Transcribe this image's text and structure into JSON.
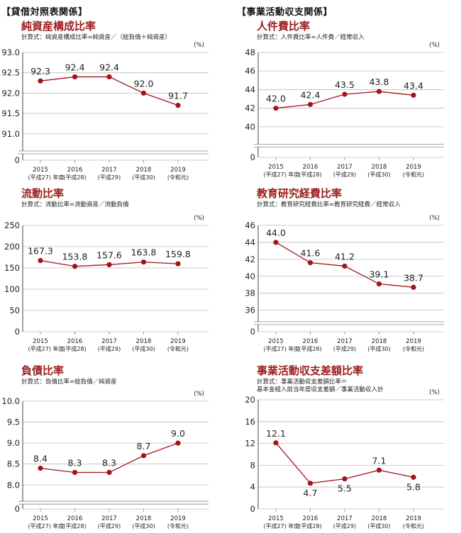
{
  "sections": {
    "left": "【貸借対照表関係】",
    "right": "【事業活動収支関係】"
  },
  "chart_data": [
    {
      "id": "c1",
      "type": "line",
      "title": "純資産構成比率",
      "formula": "計算式：純資産構成比率=純資産／（総負債＋純資産）",
      "unit": "(%)",
      "categories": [
        "2015",
        "2016",
        "2017",
        "2018",
        "2019"
      ],
      "sub_categories": [
        "(平成27) 年度",
        "(平成28)",
        "(平成29)",
        "(平成30)",
        "(令和元)"
      ],
      "values": [
        92.3,
        92.4,
        92.4,
        92.0,
        91.7
      ],
      "value_labels": [
        "92.3",
        "92.4",
        "92.4",
        "92.0",
        "91.7"
      ],
      "ylim": [
        90.7,
        93.0
      ],
      "yticks": [
        91.0,
        91.5,
        92.0,
        92.5,
        93.0
      ],
      "ytick_labels": [
        "91.0",
        "91.5",
        "92.0",
        "92.5",
        "93.0"
      ],
      "zero_label": "0",
      "axis_break": true,
      "color": "#a3131a"
    },
    {
      "id": "c2",
      "type": "line",
      "title": "人件費比率",
      "formula": "計算式：人件費比率=人件費／経常収入",
      "unit": "(%)",
      "categories": [
        "2015",
        "2016",
        "2017",
        "2018",
        "2019"
      ],
      "sub_categories": [
        "(平成27) 年度",
        "(平成28)",
        "(平成29)",
        "(平成30)",
        "(令和元)"
      ],
      "values": [
        42.0,
        42.4,
        43.5,
        43.8,
        43.4
      ],
      "value_labels": [
        "42.0",
        "42.4",
        "43.5",
        "43.8",
        "43.4"
      ],
      "ylim": [
        39.0,
        48.0
      ],
      "yticks": [
        40,
        42,
        44,
        46,
        48
      ],
      "ytick_labels": [
        "40",
        "42",
        "44",
        "46",
        "48"
      ],
      "zero_label": "0",
      "axis_break": true,
      "color": "#a3131a"
    },
    {
      "id": "c3",
      "type": "line",
      "title": "流動比率",
      "formula": "計算式：流動比率=流動資産／流動負債",
      "unit": "(%)",
      "categories": [
        "2015",
        "2016",
        "2017",
        "2018",
        "2019"
      ],
      "sub_categories": [
        "(平成27) 年度",
        "(平成28)",
        "(平成29)",
        "(平成30)",
        "(令和元)"
      ],
      "values": [
        167.3,
        153.8,
        157.6,
        163.8,
        159.8
      ],
      "value_labels": [
        "167.3",
        "153.8",
        "157.6",
        "163.8",
        "159.8"
      ],
      "ylim": [
        0,
        250
      ],
      "yticks": [
        0,
        50,
        100,
        150,
        200,
        250
      ],
      "ytick_labels": [
        "0",
        "50",
        "100",
        "150",
        "200",
        "250"
      ],
      "zero_label": "",
      "axis_break": false,
      "color": "#a3131a"
    },
    {
      "id": "c4",
      "type": "line",
      "title": "教育研究経費比率",
      "formula": "計算式：教育研究経費比率=教育研究経費／経常収入",
      "unit": "(%)",
      "categories": [
        "2015",
        "2016",
        "2017",
        "2018",
        "2019"
      ],
      "sub_categories": [
        "(平成27) 年度",
        "(平成28)",
        "(平成29)",
        "(平成30)",
        "(令和元)"
      ],
      "values": [
        44.0,
        41.6,
        41.2,
        39.1,
        38.7
      ],
      "value_labels": [
        "44.0",
        "41.6",
        "41.2",
        "39.1",
        "38.7"
      ],
      "ylim": [
        35.3,
        46.0
      ],
      "yticks": [
        36,
        38,
        40,
        42,
        44,
        46
      ],
      "ytick_labels": [
        "36",
        "38",
        "40",
        "42",
        "44",
        "46"
      ],
      "zero_label": "0",
      "axis_break": true,
      "color": "#a3131a"
    },
    {
      "id": "c5",
      "type": "line",
      "title": "負債比率",
      "formula": "計算式：負債比率=総負債／純資産",
      "unit": "(%)",
      "categories": [
        "2015",
        "2016",
        "2017",
        "2018",
        "2019"
      ],
      "sub_categories": [
        "(平成27) 年度",
        "(平成28)",
        "(平成29)",
        "(平成30)",
        "(令和元)"
      ],
      "values": [
        8.4,
        8.3,
        8.3,
        8.7,
        9.0
      ],
      "value_labels": [
        "8.4",
        "8.3",
        "8.3",
        "8.7",
        "9.0"
      ],
      "ylim": [
        7.7,
        10.0
      ],
      "yticks": [
        8.0,
        8.5,
        9.0,
        9.5,
        10.0
      ],
      "ytick_labels": [
        "8.0",
        "8.5",
        "9.0",
        "9.5",
        "10.0"
      ],
      "zero_label": "0",
      "axis_break": true,
      "color": "#a3131a"
    },
    {
      "id": "c6",
      "type": "line",
      "title": "事業活動収支差額比率",
      "formula": "計算式：事業活動収支差額比率＝\n基本金組入前当年度収支差額／事業活動収入計",
      "unit": "(%)",
      "categories": [
        "2015",
        "2016",
        "2017",
        "2018",
        "2019"
      ],
      "sub_categories": [
        "(平成27) 年度",
        "(平成28)",
        "(平成29)",
        "(平成30)",
        "(令和元)"
      ],
      "values": [
        12.1,
        4.7,
        5.5,
        7.1,
        5.8
      ],
      "value_labels": [
        "12.1",
        "4.7",
        "5.5",
        "7.1",
        "5.8"
      ],
      "ylim": [
        0,
        20
      ],
      "yticks": [
        0,
        4,
        8,
        12,
        16,
        20
      ],
      "ytick_labels": [
        "0",
        "4",
        "8",
        "12",
        "16",
        "20"
      ],
      "zero_label": "",
      "axis_break": false,
      "color": "#a3131a"
    }
  ]
}
